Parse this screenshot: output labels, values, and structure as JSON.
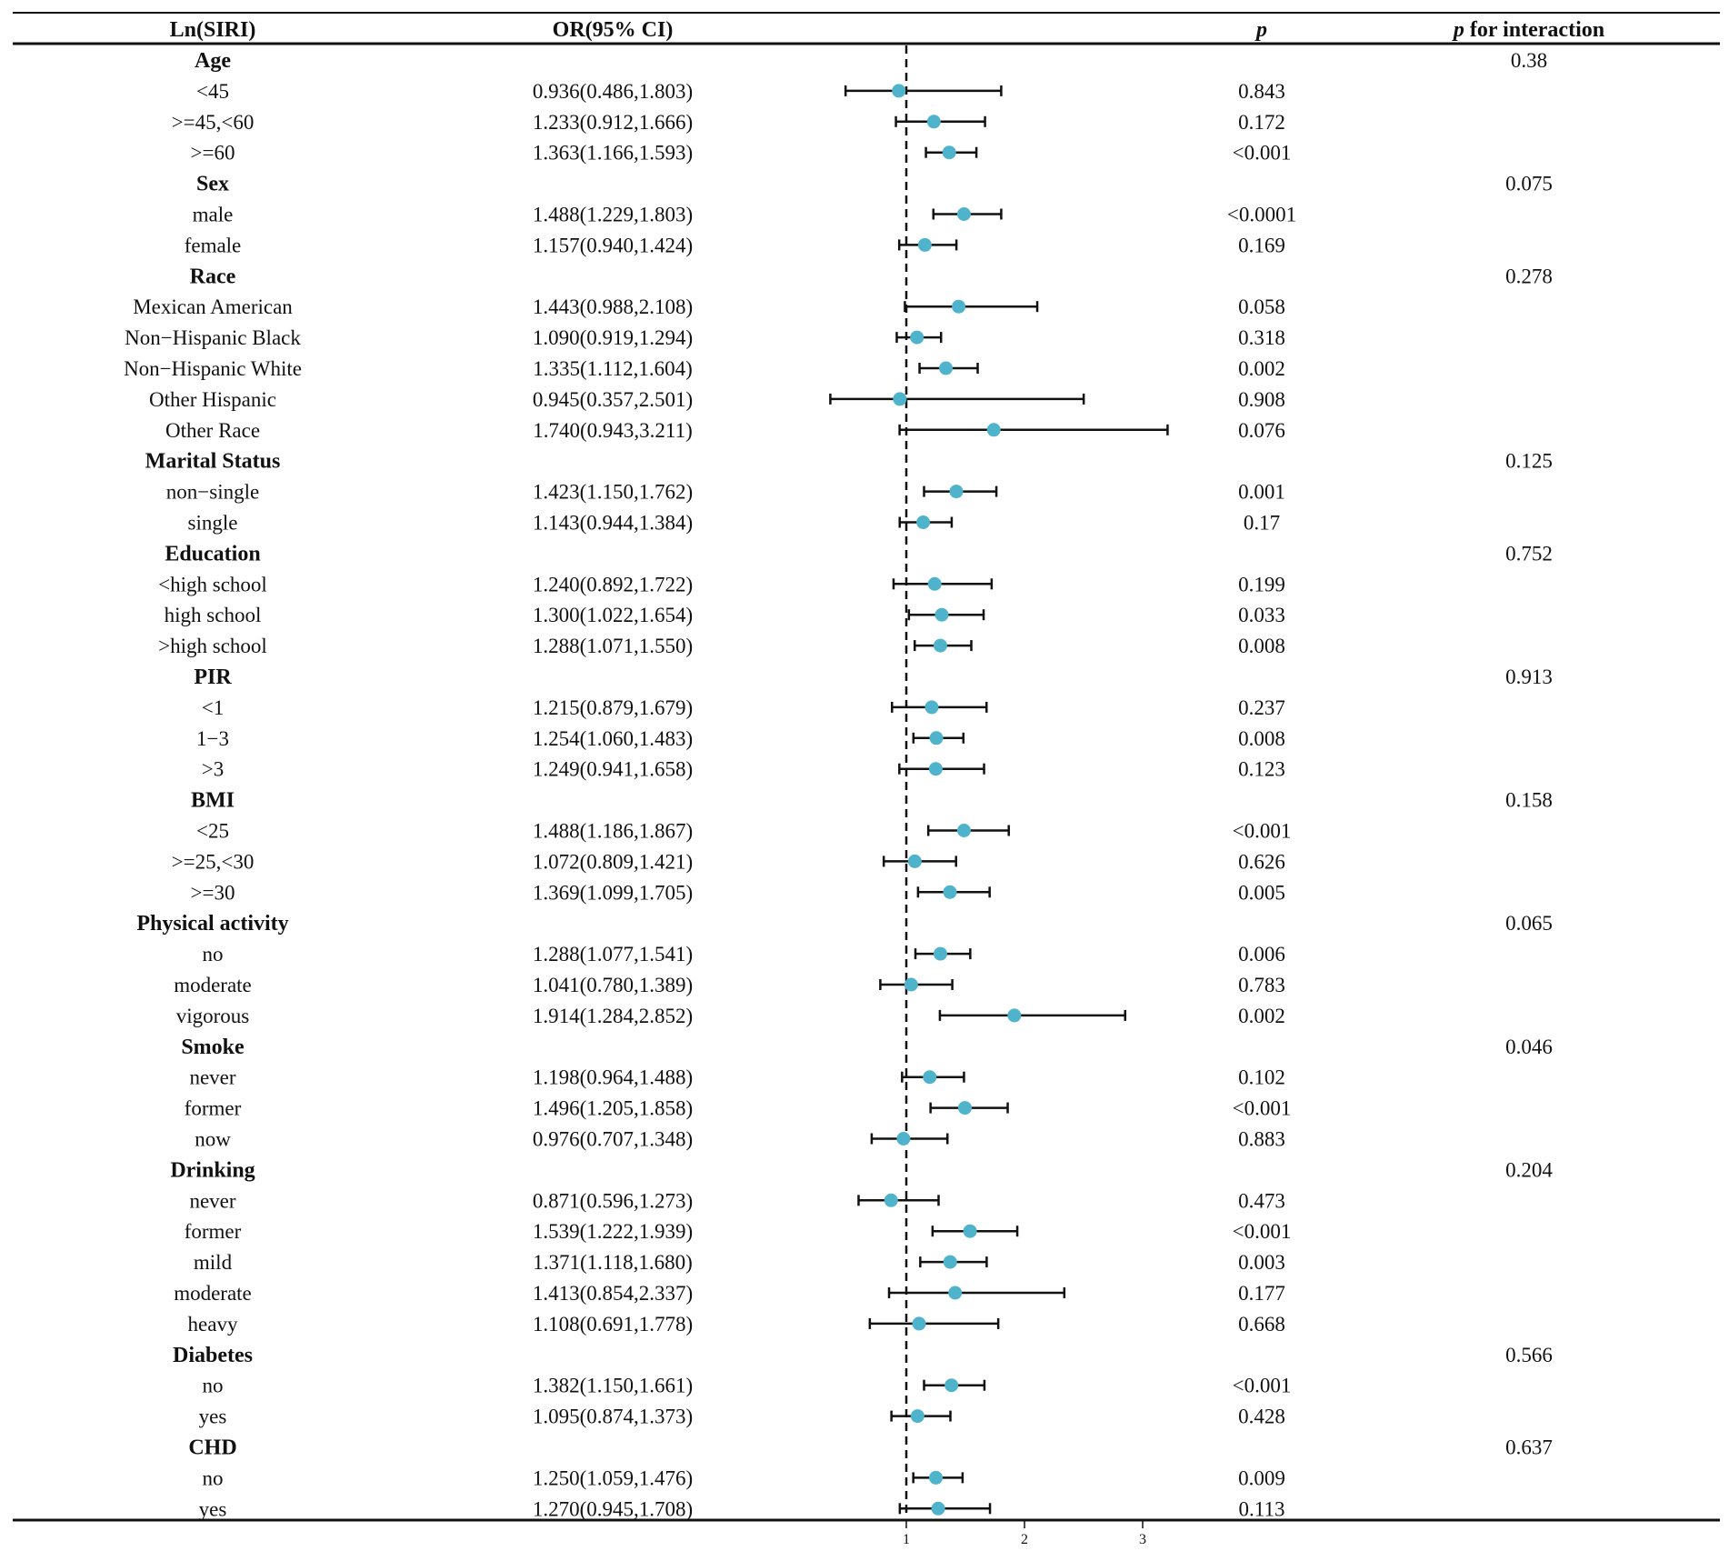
{
  "chart_data": {
    "type": "forest",
    "reference_line": 1,
    "xaxis": {
      "ticks": [
        1,
        2,
        3
      ]
    },
    "columns": {
      "label": "Ln(SIRI)",
      "or": "OR(95% CI)",
      "p": "p",
      "interaction_prefix": "p",
      "interaction_suffix": " for interaction"
    },
    "colors": {
      "point": "#4fb3cc",
      "line": "#111111"
    },
    "rows": [
      {
        "group": "Age",
        "interaction": "0.38"
      },
      {
        "label": "<45",
        "or": 0.936,
        "lo": 0.486,
        "hi": 1.803,
        "text": "0.936(0.486,1.803)",
        "p": "0.843"
      },
      {
        "label": ">=45,<60",
        "or": 1.233,
        "lo": 0.912,
        "hi": 1.666,
        "text": "1.233(0.912,1.666)",
        "p": "0.172"
      },
      {
        "label": ">=60",
        "or": 1.363,
        "lo": 1.166,
        "hi": 1.593,
        "text": "1.363(1.166,1.593)",
        "p": "<0.001"
      },
      {
        "group": "Sex",
        "interaction": "0.075"
      },
      {
        "label": "male",
        "or": 1.488,
        "lo": 1.229,
        "hi": 1.803,
        "text": "1.488(1.229,1.803)",
        "p": "<0.0001"
      },
      {
        "label": "female",
        "or": 1.157,
        "lo": 0.94,
        "hi": 1.424,
        "text": "1.157(0.940,1.424)",
        "p": "0.169"
      },
      {
        "group": "Race",
        "interaction": "0.278"
      },
      {
        "label": "Mexican American",
        "or": 1.443,
        "lo": 0.988,
        "hi": 2.108,
        "text": "1.443(0.988,2.108)",
        "p": "0.058"
      },
      {
        "label": "Non−Hispanic Black",
        "or": 1.09,
        "lo": 0.919,
        "hi": 1.294,
        "text": "1.090(0.919,1.294)",
        "p": "0.318"
      },
      {
        "label": "Non−Hispanic White",
        "or": 1.335,
        "lo": 1.112,
        "hi": 1.604,
        "text": "1.335(1.112,1.604)",
        "p": "0.002"
      },
      {
        "label": "Other Hispanic",
        "or": 0.945,
        "lo": 0.357,
        "hi": 2.501,
        "text": "0.945(0.357,2.501)",
        "p": "0.908"
      },
      {
        "label": "Other Race",
        "or": 1.74,
        "lo": 0.943,
        "hi": 3.211,
        "text": "1.740(0.943,3.211)",
        "p": "0.076"
      },
      {
        "group": "Marital Status",
        "interaction": "0.125"
      },
      {
        "label": "non−single",
        "or": 1.423,
        "lo": 1.15,
        "hi": 1.762,
        "text": "1.423(1.150,1.762)",
        "p": "0.001"
      },
      {
        "label": "single",
        "or": 1.143,
        "lo": 0.944,
        "hi": 1.384,
        "text": "1.143(0.944,1.384)",
        "p": "0.17"
      },
      {
        "group": "Education",
        "interaction": "0.752"
      },
      {
        "label": "<high school",
        "or": 1.24,
        "lo": 0.892,
        "hi": 1.722,
        "text": "1.240(0.892,1.722)",
        "p": "0.199"
      },
      {
        "label": "high school",
        "or": 1.3,
        "lo": 1.022,
        "hi": 1.654,
        "text": "1.300(1.022,1.654)",
        "p": "0.033"
      },
      {
        "label": ">high school",
        "or": 1.288,
        "lo": 1.071,
        "hi": 1.55,
        "text": "1.288(1.071,1.550)",
        "p": "0.008"
      },
      {
        "group": "PIR",
        "interaction": "0.913"
      },
      {
        "label": "<1",
        "or": 1.215,
        "lo": 0.879,
        "hi": 1.679,
        "text": "1.215(0.879,1.679)",
        "p": "0.237"
      },
      {
        "label": "1−3",
        "or": 1.254,
        "lo": 1.06,
        "hi": 1.483,
        "text": "1.254(1.060,1.483)",
        "p": "0.008"
      },
      {
        "label": ">3",
        "or": 1.249,
        "lo": 0.941,
        "hi": 1.658,
        "text": "1.249(0.941,1.658)",
        "p": "0.123"
      },
      {
        "group": "BMI",
        "interaction": "0.158"
      },
      {
        "label": "<25",
        "or": 1.488,
        "lo": 1.186,
        "hi": 1.867,
        "text": "1.488(1.186,1.867)",
        "p": "<0.001"
      },
      {
        "label": ">=25,<30",
        "or": 1.072,
        "lo": 0.809,
        "hi": 1.421,
        "text": "1.072(0.809,1.421)",
        "p": "0.626"
      },
      {
        "label": ">=30",
        "or": 1.369,
        "lo": 1.099,
        "hi": 1.705,
        "text": "1.369(1.099,1.705)",
        "p": "0.005"
      },
      {
        "group": "Physical activity",
        "interaction": "0.065"
      },
      {
        "label": "no",
        "or": 1.288,
        "lo": 1.077,
        "hi": 1.541,
        "text": "1.288(1.077,1.541)",
        "p": "0.006"
      },
      {
        "label": "moderate",
        "or": 1.041,
        "lo": 0.78,
        "hi": 1.389,
        "text": "1.041(0.780,1.389)",
        "p": "0.783"
      },
      {
        "label": "vigorous",
        "or": 1.914,
        "lo": 1.284,
        "hi": 2.852,
        "text": "1.914(1.284,2.852)",
        "p": "0.002"
      },
      {
        "group": "Smoke",
        "interaction": "0.046"
      },
      {
        "label": "never",
        "or": 1.198,
        "lo": 0.964,
        "hi": 1.488,
        "text": "1.198(0.964,1.488)",
        "p": "0.102"
      },
      {
        "label": "former",
        "or": 1.496,
        "lo": 1.205,
        "hi": 1.858,
        "text": "1.496(1.205,1.858)",
        "p": "<0.001"
      },
      {
        "label": "now",
        "or": 0.976,
        "lo": 0.707,
        "hi": 1.348,
        "text": "0.976(0.707,1.348)",
        "p": "0.883"
      },
      {
        "group": "Drinking",
        "interaction": "0.204"
      },
      {
        "label": "never",
        "or": 0.871,
        "lo": 0.596,
        "hi": 1.273,
        "text": "0.871(0.596,1.273)",
        "p": "0.473"
      },
      {
        "label": "former",
        "or": 1.539,
        "lo": 1.222,
        "hi": 1.939,
        "text": "1.539(1.222,1.939)",
        "p": "<0.001"
      },
      {
        "label": "mild",
        "or": 1.371,
        "lo": 1.118,
        "hi": 1.68,
        "text": "1.371(1.118,1.680)",
        "p": "0.003"
      },
      {
        "label": "moderate",
        "or": 1.413,
        "lo": 0.854,
        "hi": 2.337,
        "text": "1.413(0.854,2.337)",
        "p": "0.177"
      },
      {
        "label": "heavy",
        "or": 1.108,
        "lo": 0.691,
        "hi": 1.778,
        "text": "1.108(0.691,1.778)",
        "p": "0.668"
      },
      {
        "group": "Diabetes",
        "interaction": "0.566"
      },
      {
        "label": "no",
        "or": 1.382,
        "lo": 1.15,
        "hi": 1.661,
        "text": "1.382(1.150,1.661)",
        "p": "<0.001"
      },
      {
        "label": "yes",
        "or": 1.095,
        "lo": 0.874,
        "hi": 1.373,
        "text": "1.095(0.874,1.373)",
        "p": "0.428"
      },
      {
        "group": "CHD",
        "interaction": "0.637"
      },
      {
        "label": "no",
        "or": 1.25,
        "lo": 1.059,
        "hi": 1.476,
        "text": "1.250(1.059,1.476)",
        "p": "0.009"
      },
      {
        "label": "yes",
        "or": 1.27,
        "lo": 0.945,
        "hi": 1.708,
        "text": "1.270(0.945,1.708)",
        "p": "0.113"
      }
    ]
  }
}
